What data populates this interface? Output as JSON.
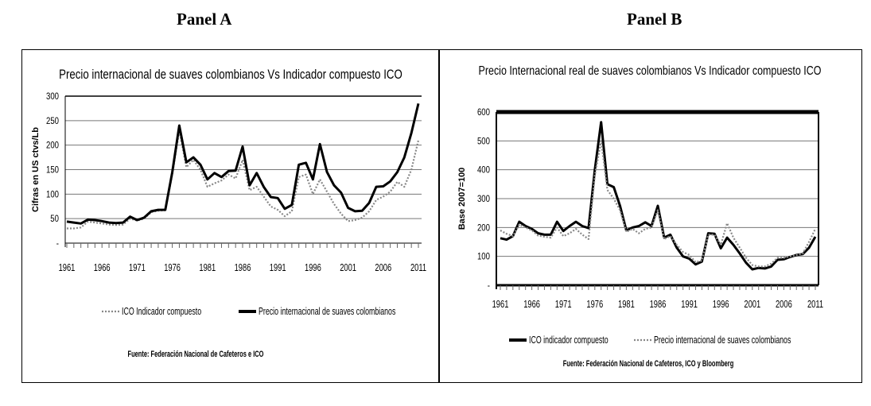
{
  "chart_data": [
    {
      "panel": "Panel A",
      "type": "line",
      "title": "Precio internacional de suaves colombianos Vs Indicador compuesto ICO",
      "xlabel": "",
      "ylabel": "Cifras en US ctvs/Lb",
      "ylim": [
        0,
        300
      ],
      "yticks": [
        "-",
        "50",
        "100",
        "150",
        "200",
        "250",
        "300"
      ],
      "xticks": [
        "1961",
        "1966",
        "1971",
        "1976",
        "1981",
        "1986",
        "1991",
        "1996",
        "2001",
        "2006",
        "2011"
      ],
      "grid": true,
      "legend": "bottom",
      "x_start": 1961,
      "x_end": 2011,
      "series": [
        {
          "name": "ICO Indicador compuesto",
          "style": "dotted",
          "color": "#888888",
          "values": [
            30,
            30,
            32,
            44,
            42,
            40,
            38,
            37,
            38,
            50,
            46,
            50,
            63,
            66,
            67,
            140,
            230,
            155,
            170,
            150,
            115,
            122,
            128,
            140,
            132,
            170,
            108,
            115,
            95,
            75,
            68,
            55,
            65,
            135,
            140,
            100,
            130,
            105,
            80,
            60,
            45,
            47,
            52,
            65,
            88,
            95,
            105,
            125,
            115,
            150,
            210
          ]
        },
        {
          "name": "Precio internacional de suaves colombianos",
          "style": "solid",
          "color": "#000000",
          "values": [
            44,
            42,
            40,
            48,
            47,
            45,
            42,
            41,
            42,
            54,
            47,
            52,
            65,
            68,
            68,
            145,
            240,
            165,
            175,
            160,
            130,
            143,
            135,
            147,
            148,
            197,
            118,
            143,
            115,
            94,
            92,
            70,
            78,
            160,
            164,
            130,
            202,
            145,
            118,
            103,
            72,
            65,
            66,
            82,
            115,
            116,
            126,
            145,
            175,
            225,
            285
          ]
        }
      ],
      "source": "Fuente: Federación Nacional de Cafeteros e ICO"
    },
    {
      "panel": "Panel B",
      "type": "line",
      "title": "Precio Internacional real de suaves colombianos Vs Indicador compuesto ICO",
      "xlabel": "",
      "ylabel": "Base 2007=100",
      "ylim": [
        0,
        600
      ],
      "yticks": [
        "-",
        "100",
        "200",
        "300",
        "400",
        "500",
        "600"
      ],
      "xticks": [
        "1961",
        "1966",
        "1971",
        "1976",
        "1981",
        "1986",
        "1991",
        "1996",
        "2001",
        "2006",
        "2011"
      ],
      "grid": true,
      "legend": "bottom",
      "x_start": 1961,
      "x_end": 2011,
      "series": [
        {
          "name": "ICO indicador compuesto",
          "style": "solid",
          "color": "#000000",
          "values": [
            163,
            158,
            170,
            220,
            205,
            195,
            180,
            175,
            175,
            220,
            188,
            205,
            220,
            205,
            198,
            400,
            565,
            350,
            340,
            275,
            190,
            200,
            205,
            218,
            205,
            275,
            165,
            175,
            130,
            100,
            92,
            72,
            82,
            180,
            178,
            128,
            165,
            140,
            110,
            78,
            55,
            60,
            58,
            65,
            88,
            90,
            98,
            105,
            108,
            130,
            168
          ]
        },
        {
          "name": "Precio internacional de suaves colombianos",
          "style": "dotted",
          "color": "#888888",
          "values": [
            190,
            178,
            170,
            210,
            200,
            190,
            172,
            168,
            165,
            200,
            170,
            180,
            195,
            175,
            160,
            380,
            500,
            330,
            300,
            260,
            185,
            195,
            180,
            195,
            200,
            260,
            160,
            170,
            140,
            115,
            105,
            80,
            85,
            175,
            175,
            140,
            215,
            165,
            130,
            95,
            70,
            65,
            65,
            75,
            95,
            95,
            100,
            105,
            110,
            150,
            195
          ]
        }
      ],
      "source": "Fuente: Federación Nacional de Cafeteros, ICO y Bloomberg"
    }
  ]
}
